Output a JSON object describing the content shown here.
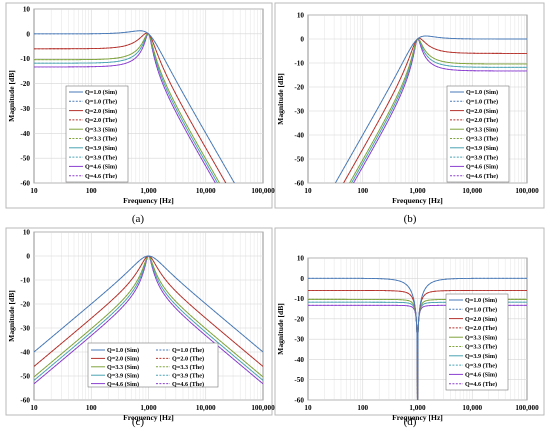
{
  "colors": {
    "q1": "#4a7ab7",
    "q2": "#b5322c",
    "q33": "#7fa33a",
    "q39": "#4aa3b3",
    "q46": "#8a3fd0"
  },
  "chart_data": [
    {
      "id": "a",
      "type": "line",
      "caption": "(a)",
      "filter": "lowpass",
      "xlabel": "Frequency [Hz]",
      "ylabel": "Magnitude [dB]",
      "xscale": "log",
      "xlim": [
        10,
        100000
      ],
      "ylim": [
        -60,
        10
      ],
      "xticks": [
        "10",
        "100",
        "1,000",
        "10,000",
        "100,000"
      ],
      "yticks": [
        "10",
        "0",
        "-10",
        "-20",
        "-30",
        "-40",
        "-50",
        "-60"
      ],
      "grid": true,
      "f0": 1000,
      "legend_position": "left-center",
      "legend_columns": 1,
      "series": [
        {
          "name": "Q=1.0 (Sim)",
          "q": 1.0,
          "color": "q1",
          "dash": false,
          "passband_db": 0
        },
        {
          "name": "Q=1.0 (The)",
          "q": 1.0,
          "color": "q1",
          "dash": true,
          "passband_db": 0
        },
        {
          "name": "Q=2.0 (Sim)",
          "q": 2.0,
          "color": "q2",
          "dash": false,
          "passband_db": -6.0
        },
        {
          "name": "Q=2.0 (The)",
          "q": 2.0,
          "color": "q2",
          "dash": true,
          "passband_db": -6.0
        },
        {
          "name": "Q=3.3 (Sim)",
          "q": 3.3,
          "color": "q33",
          "dash": false,
          "passband_db": -10.4
        },
        {
          "name": "Q=3.3 (The)",
          "q": 3.3,
          "color": "q33",
          "dash": true,
          "passband_db": -10.4
        },
        {
          "name": "Q=3.9 (Sim)",
          "q": 3.9,
          "color": "q39",
          "dash": false,
          "passband_db": -11.8
        },
        {
          "name": "Q=3.9 (The)",
          "q": 3.9,
          "color": "q39",
          "dash": true,
          "passband_db": -11.8
        },
        {
          "name": "Q=4.6 (Sim)",
          "q": 4.6,
          "color": "q46",
          "dash": false,
          "passband_db": -13.3
        },
        {
          "name": "Q=4.6 (The)",
          "q": 4.6,
          "color": "q46",
          "dash": true,
          "passband_db": -13.3
        }
      ]
    },
    {
      "id": "b",
      "type": "line",
      "caption": "(b)",
      "filter": "highpass",
      "xlabel": "Frequency [Hz]",
      "ylabel": "Magnitude [dB]",
      "xscale": "log",
      "xlim": [
        10,
        100000
      ],
      "ylim": [
        -60,
        10
      ],
      "xticks": [
        "10",
        "100",
        "1,000",
        "10,000",
        "100,000"
      ],
      "yticks": [
        "10",
        "0",
        "-10",
        "-20",
        "-30",
        "-40",
        "-50",
        "-60"
      ],
      "grid": true,
      "f0": 1000,
      "legend_position": "right-center",
      "legend_columns": 1,
      "series": [
        {
          "name": "Q=1.0 (Sim)",
          "q": 1.0,
          "color": "q1",
          "dash": false,
          "passband_db": 0
        },
        {
          "name": "Q=1.0 (The)",
          "q": 1.0,
          "color": "q1",
          "dash": true,
          "passband_db": 0
        },
        {
          "name": "Q=2.0 (Sim)",
          "q": 2.0,
          "color": "q2",
          "dash": false,
          "passband_db": -6.0
        },
        {
          "name": "Q=2.0 (The)",
          "q": 2.0,
          "color": "q2",
          "dash": true,
          "passband_db": -6.0
        },
        {
          "name": "Q=3.3 (Sim)",
          "q": 3.3,
          "color": "q33",
          "dash": false,
          "passband_db": -10.4
        },
        {
          "name": "Q=3.3 (The)",
          "q": 3.3,
          "color": "q33",
          "dash": true,
          "passband_db": -10.4
        },
        {
          "name": "Q=3.9 (Sim)",
          "q": 3.9,
          "color": "q39",
          "dash": false,
          "passband_db": -11.8
        },
        {
          "name": "Q=3.9 (The)",
          "q": 3.9,
          "color": "q39",
          "dash": true,
          "passband_db": -11.8
        },
        {
          "name": "Q=4.6 (Sim)",
          "q": 4.6,
          "color": "q46",
          "dash": false,
          "passband_db": -13.3
        },
        {
          "name": "Q=4.6 (The)",
          "q": 4.6,
          "color": "q46",
          "dash": true,
          "passband_db": -13.3
        }
      ]
    },
    {
      "id": "c",
      "type": "line",
      "caption": "(c)",
      "filter": "bandpass",
      "xlabel": "Frequency [Hz]",
      "ylabel": "Magnitude [dB]",
      "xscale": "log",
      "xlim": [
        10,
        100000
      ],
      "ylim": [
        -60,
        10
      ],
      "xticks": [
        "10",
        "100",
        "1,000",
        "10,000",
        "100,000"
      ],
      "yticks": [
        "10",
        "0",
        "-10",
        "-20",
        "-30",
        "-40",
        "-50",
        "-60"
      ],
      "grid": true,
      "f0": 1000,
      "legend_position": "bottom-center",
      "legend_columns": 2,
      "series": [
        {
          "name": "Q=1.0 (Sim)",
          "q": 1.0,
          "color": "q1",
          "dash": false,
          "passband_db": 0
        },
        {
          "name": "Q=1.0 (The)",
          "q": 1.0,
          "color": "q1",
          "dash": true,
          "passband_db": 0
        },
        {
          "name": "Q=2.0 (Sim)",
          "q": 2.0,
          "color": "q2",
          "dash": false,
          "passband_db": 0
        },
        {
          "name": "Q=2.0 (The)",
          "q": 2.0,
          "color": "q2",
          "dash": true,
          "passband_db": 0
        },
        {
          "name": "Q=3.3 (Sim)",
          "q": 3.3,
          "color": "q33",
          "dash": false,
          "passband_db": 0
        },
        {
          "name": "Q=3.3 (The)",
          "q": 3.3,
          "color": "q33",
          "dash": true,
          "passband_db": 0
        },
        {
          "name": "Q=3.9 (Sim)",
          "q": 3.9,
          "color": "q39",
          "dash": false,
          "passband_db": 0
        },
        {
          "name": "Q=3.9 (The)",
          "q": 3.9,
          "color": "q39",
          "dash": true,
          "passband_db": 0
        },
        {
          "name": "Q=4.6 (Sim)",
          "q": 4.6,
          "color": "q46",
          "dash": false,
          "passband_db": 0
        },
        {
          "name": "Q=4.6 (The)",
          "q": 4.6,
          "color": "q46",
          "dash": true,
          "passband_db": 0
        }
      ]
    },
    {
      "id": "d",
      "type": "line",
      "caption": "(d)",
      "filter": "notch",
      "xlabel": "Frequency [Hz]",
      "ylabel": "Magnitude [dB]",
      "xscale": "log",
      "xlim": [
        10,
        100000
      ],
      "ylim": [
        -60,
        10
      ],
      "xticks": [
        "10",
        "100",
        "1,000",
        "10,000",
        "100,000"
      ],
      "yticks": [
        "10",
        "0",
        "-10",
        "-20",
        "-30",
        "-40",
        "-50",
        "-60"
      ],
      "grid": true,
      "f0": 1000,
      "legend_position": "right-center",
      "legend_columns": 1,
      "series": [
        {
          "name": "Q=1.0 (Sim)",
          "q": 1.0,
          "color": "q1",
          "dash": false,
          "passband_db": 0
        },
        {
          "name": "Q=1.0 (The)",
          "q": 1.0,
          "color": "q1",
          "dash": true,
          "passband_db": 0
        },
        {
          "name": "Q=2.0 (Sim)",
          "q": 2.0,
          "color": "q2",
          "dash": false,
          "passband_db": -6.0
        },
        {
          "name": "Q=2.0 (The)",
          "q": 2.0,
          "color": "q2",
          "dash": true,
          "passband_db": -6.0
        },
        {
          "name": "Q=3.3 (Sim)",
          "q": 3.3,
          "color": "q33",
          "dash": false,
          "passband_db": -10.4
        },
        {
          "name": "Q=3.3 (The)",
          "q": 3.3,
          "color": "q33",
          "dash": true,
          "passband_db": -10.4
        },
        {
          "name": "Q=3.9 (Sim)",
          "q": 3.9,
          "color": "q39",
          "dash": false,
          "passband_db": -11.8
        },
        {
          "name": "Q=3.9 (The)",
          "q": 3.9,
          "color": "q39",
          "dash": true,
          "passband_db": -11.8
        },
        {
          "name": "Q=4.6 (Sim)",
          "q": 4.6,
          "color": "q46",
          "dash": false,
          "passband_db": -13.3
        },
        {
          "name": "Q=4.6 (The)",
          "q": 4.6,
          "color": "q46",
          "dash": true,
          "passband_db": -13.3
        }
      ]
    }
  ]
}
